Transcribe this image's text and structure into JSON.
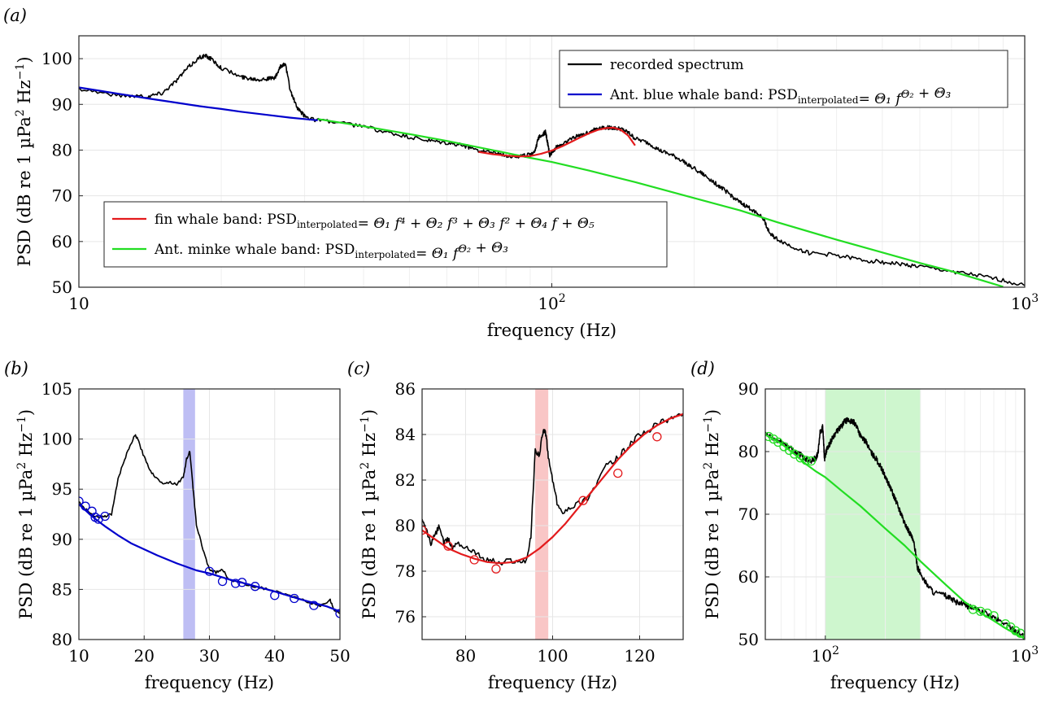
{
  "chart_data": [
    {
      "id": "a",
      "type": "line",
      "panel_label": "(a)",
      "xscale": "log",
      "xlim": [
        10,
        1000
      ],
      "ylim": [
        50,
        105
      ],
      "xticks": [
        {
          "value": 10,
          "label": "10",
          "sup": ""
        },
        {
          "value": 100,
          "label": "10",
          "sup": "2"
        },
        {
          "value": 1000,
          "label": "10",
          "sup": "3"
        }
      ],
      "yticks": [
        50,
        60,
        70,
        80,
        90,
        100
      ],
      "xlabel": "frequency (Hz)",
      "ylabel": {
        "pre": "PSD (dB re 1 µPa",
        "sup1": "2",
        "mid": " Hz",
        "sup2": "−1",
        "post": ")"
      },
      "legend_top_right": [
        {
          "name": "recorded spectrum",
          "color": "#000000"
        },
        {
          "name": "Ant. blue whale band: PSD",
          "sub": "interpolated",
          "formula": "= Θ₁ f^Θ₂ + Θ₃",
          "color": "#0000cc"
        }
      ],
      "legend_middle_left": [
        {
          "name": "fin whale band: PSD",
          "sub": "interpolated",
          "formula": "= Θ₁ f⁴ + Θ₂ f³ + Θ₃ f² + Θ₄ f + Θ₅",
          "color": "#e31a1c"
        },
        {
          "name": "Ant. minke whale band: PSD",
          "sub": "interpolated",
          "formula": "= Θ₁ f^Θ₂ + Θ₃",
          "color": "#22dd22"
        }
      ],
      "series": [
        {
          "name": "recorded spectrum",
          "color": "#000000",
          "noise": 0.45,
          "x": [
            10,
            12,
            14,
            15,
            16,
            17,
            18,
            18.5,
            19,
            20,
            22,
            23,
            24,
            25,
            26,
            26.7,
            27.3,
            28,
            29,
            30,
            31,
            35,
            40,
            45,
            50,
            55,
            60,
            65,
            70,
            75,
            80,
            85,
            90,
            92,
            94,
            96,
            97,
            98,
            99,
            100,
            102,
            105,
            110,
            115,
            120,
            125,
            130,
            135,
            140,
            145,
            150,
            160,
            170,
            180,
            190,
            200,
            210,
            220,
            230,
            240,
            250,
            260,
            270,
            280,
            290,
            300,
            320,
            350,
            400,
            450,
            500,
            550,
            600,
            700,
            800,
            900,
            1000
          ],
          "y": [
            93.5,
            92,
            91.8,
            92.5,
            95,
            98,
            100.3,
            100.6,
            100,
            98,
            96,
            95.7,
            95.5,
            95.6,
            95.8,
            98.2,
            99,
            93,
            89,
            87.5,
            86.8,
            86,
            85.2,
            83.8,
            82.8,
            82,
            81.5,
            81,
            80,
            79.5,
            78.8,
            78.6,
            79,
            79.8,
            83,
            83.5,
            84,
            81.5,
            78.8,
            79.5,
            80.5,
            81.2,
            82.5,
            83.3,
            84,
            84.8,
            85,
            84.8,
            84.6,
            83.8,
            82.5,
            81.5,
            79.8,
            78.8,
            77.5,
            76,
            74.5,
            73,
            71.5,
            70,
            68.5,
            67.5,
            66.5,
            65,
            61.5,
            60.5,
            59,
            57.5,
            57,
            56,
            55.5,
            55,
            54.5,
            53.5,
            52.5,
            51.5,
            50.4
          ]
        },
        {
          "name": "Ant. blue whale band",
          "color": "#0000cc",
          "x": [
            10,
            12,
            14,
            16,
            18,
            20,
            22,
            25,
            28,
            30,
            32
          ],
          "y": [
            93.7,
            92.4,
            91.3,
            90.4,
            89.6,
            89,
            88.4,
            87.7,
            87.1,
            86.8,
            86.5
          ]
        },
        {
          "name": "Ant. minke whale band",
          "color": "#22dd22",
          "x": [
            32,
            40,
            50,
            60,
            70,
            80,
            90,
            100,
            120,
            150,
            200,
            250,
            300,
            400,
            500,
            600,
            700,
            800,
            900
          ],
          "y": [
            86.8,
            85.2,
            83.5,
            82,
            80.6,
            79.4,
            78.3,
            77.4,
            75.5,
            73,
            69.5,
            66.8,
            64.2,
            60.4,
            57.6,
            55.3,
            53.5,
            51.7,
            50.1
          ]
        },
        {
          "name": "fin whale band",
          "color": "#e31a1c",
          "x": [
            70,
            75,
            80,
            85,
            90,
            95,
            100,
            105,
            110,
            115,
            120,
            125,
            130,
            135,
            140,
            145,
            150
          ],
          "y": [
            79.6,
            79.1,
            78.8,
            78.6,
            78.7,
            79.2,
            79.9,
            80.8,
            81.8,
            82.8,
            83.7,
            84.4,
            84.8,
            84.9,
            84.4,
            83.2,
            81
          ]
        }
      ]
    },
    {
      "id": "b",
      "type": "line",
      "panel_label": "(b)",
      "xscale": "linear",
      "xlim": [
        10,
        50
      ],
      "ylim": [
        80,
        105
      ],
      "xticks": [
        {
          "value": 10,
          "label": "10"
        },
        {
          "value": 20,
          "label": "20"
        },
        {
          "value": 30,
          "label": "30"
        },
        {
          "value": 40,
          "label": "40"
        },
        {
          "value": 50,
          "label": "50"
        }
      ],
      "yticks": [
        80,
        85,
        90,
        95,
        100,
        105
      ],
      "xlabel": "frequency (Hz)",
      "ylabel": {
        "pre": "PSD (dB re 1 µPa",
        "sup1": "2",
        "mid": " Hz",
        "sup2": "−1",
        "post": ")"
      },
      "shaded_band": {
        "x0": 26,
        "x1": 27.8,
        "color": "#b3b3f2"
      },
      "series": [
        {
          "name": "recorded spectrum",
          "color": "#000000",
          "noise": 0.12,
          "x": [
            10,
            11,
            12,
            13,
            14,
            15,
            16,
            17,
            18,
            18.6,
            19,
            20,
            21,
            22,
            23,
            24,
            25,
            26,
            26.5,
            27,
            27.5,
            28,
            29,
            30,
            31,
            32,
            33,
            35,
            37,
            39,
            41,
            43,
            45,
            47,
            48.5,
            49,
            50
          ],
          "y": [
            93.7,
            93,
            92.5,
            92.2,
            92.3,
            92.5,
            96,
            98,
            99.5,
            100.4,
            100,
            98.2,
            96.8,
            96,
            95.6,
            95.7,
            95.5,
            96.2,
            98,
            98.8,
            95,
            91.5,
            89,
            87,
            86.7,
            87,
            86,
            85.6,
            85.3,
            85,
            84.6,
            84.2,
            83.8,
            83.3,
            84,
            83,
            82.6
          ]
        },
        {
          "name": "Ant. blue whale band",
          "color": "#0000cc",
          "x": [
            10,
            12,
            14,
            16,
            18,
            20,
            22,
            25,
            28,
            30,
            33,
            36,
            40,
            44,
            48,
            50
          ],
          "y": [
            93.5,
            92.3,
            91.3,
            90.4,
            89.6,
            89,
            88.4,
            87.6,
            86.9,
            86.6,
            86,
            85.5,
            84.8,
            84,
            83.3,
            82.8
          ]
        }
      ],
      "markers": {
        "color": "#0000cc",
        "x": [
          10,
          11,
          12,
          12.5,
          13,
          14,
          30,
          32,
          34,
          35,
          37,
          40,
          43,
          46,
          50
        ],
        "y": [
          93.8,
          93.3,
          92.8,
          92.2,
          92,
          92.3,
          86.8,
          85.8,
          85.6,
          85.7,
          85.3,
          84.4,
          84.1,
          83.4,
          82.6
        ]
      }
    },
    {
      "id": "c",
      "type": "line",
      "panel_label": "(c)",
      "xscale": "linear",
      "xlim": [
        70,
        130
      ],
      "ylim": [
        75,
        86
      ],
      "xticks": [
        {
          "value": 80,
          "label": "80"
        },
        {
          "value": 100,
          "label": "100"
        },
        {
          "value": 120,
          "label": "120"
        }
      ],
      "yticks": [
        76,
        78,
        80,
        82,
        84,
        86
      ],
      "xlabel": "frequency (Hz)",
      "ylabel": {
        "pre": "PSD (dB re 1 µPa",
        "sup1": "2",
        "mid": " Hz",
        "sup2": "−1",
        "post": ")"
      },
      "shaded_band": {
        "x0": 96,
        "x1": 99,
        "color": "#f8bcbc"
      },
      "series": [
        {
          "name": "recorded spectrum",
          "color": "#000000",
          "noise": 0.12,
          "x": [
            70,
            71,
            72,
            73,
            74,
            75,
            76,
            77,
            78,
            80,
            82,
            84,
            86,
            88,
            90,
            92,
            94,
            95,
            96,
            97,
            97.5,
            98,
            98.5,
            99,
            100,
            101,
            102,
            104,
            106,
            108,
            110,
            112,
            114,
            116,
            118,
            120,
            122,
            124,
            126,
            128,
            130
          ],
          "y": [
            80.2,
            79.8,
            79.2,
            79.6,
            80,
            79.2,
            79.4,
            79,
            79.3,
            79,
            78.9,
            78.5,
            78.5,
            78.3,
            78.5,
            78.4,
            78.5,
            79.5,
            83.3,
            83.1,
            83.8,
            84.2,
            84,
            83,
            82,
            81,
            80.6,
            80.8,
            81,
            81.2,
            81.8,
            82.6,
            82.8,
            83.2,
            83.6,
            84,
            84.1,
            84.5,
            84.6,
            84.8,
            84.9
          ]
        },
        {
          "name": "fin whale band",
          "color": "#e31a1c",
          "x": [
            70,
            73,
            76,
            79,
            82,
            85,
            88,
            91,
            94,
            97,
            100,
            103,
            106,
            109,
            112,
            115,
            118,
            121,
            124,
            127,
            130
          ],
          "y": [
            79.8,
            79.4,
            79,
            78.75,
            78.55,
            78.4,
            78.35,
            78.4,
            78.6,
            79,
            79.5,
            80.1,
            80.8,
            81.5,
            82.2,
            82.9,
            83.5,
            84,
            84.4,
            84.7,
            84.9
          ]
        }
      ],
      "markers": {
        "color": "#e31a1c",
        "x": [
          70,
          76,
          82,
          87,
          107,
          115,
          124
        ],
        "y": [
          79.8,
          79.1,
          78.5,
          78.1,
          81.1,
          82.3,
          83.9
        ]
      }
    },
    {
      "id": "d",
      "type": "line",
      "panel_label": "(d)",
      "xscale": "log",
      "xlim": [
        50,
        1000
      ],
      "ylim": [
        50,
        90
      ],
      "xticks": [
        {
          "value": 100,
          "label": "10",
          "sup": "2"
        },
        {
          "value": 1000,
          "label": "10",
          "sup": "3"
        }
      ],
      "yticks": [
        50,
        60,
        70,
        80,
        90
      ],
      "xlabel": "frequency (Hz)",
      "ylabel": {
        "pre": "PSD (dB re 1 µPa",
        "sup1": "2",
        "mid": " Hz",
        "sup2": "−1",
        "post": ")"
      },
      "shaded_band": {
        "x0": 100,
        "x1": 300,
        "color": "#c6f5c6"
      },
      "series": [
        {
          "name": "recorded spectrum",
          "color": "#000000",
          "noise": 0.45,
          "x": [
            50,
            55,
            60,
            65,
            70,
            75,
            80,
            85,
            90,
            92,
            94,
            96,
            97,
            98,
            99,
            100,
            102,
            105,
            110,
            115,
            120,
            125,
            130,
            135,
            140,
            145,
            150,
            160,
            170,
            180,
            190,
            200,
            210,
            220,
            230,
            240,
            250,
            260,
            270,
            280,
            290,
            300,
            320,
            350,
            400,
            450,
            500,
            550,
            600,
            700,
            800,
            900,
            1000
          ],
          "y": [
            82.8,
            82,
            81.5,
            81,
            80,
            79.5,
            78.8,
            78.6,
            79,
            79.8,
            83,
            83.5,
            84,
            81.5,
            78.8,
            79.5,
            80.5,
            81.2,
            82.5,
            83.3,
            84,
            84.8,
            85,
            84.8,
            84.6,
            83.8,
            82.5,
            81.5,
            79.8,
            78.8,
            77.5,
            76,
            74.5,
            73,
            71.5,
            70,
            68.5,
            67.5,
            66.5,
            65,
            61.5,
            60.5,
            59,
            57.5,
            57,
            56,
            55.5,
            55,
            54.5,
            53.5,
            52.5,
            51.5,
            50.4
          ]
        },
        {
          "name": "Ant. minke whale band",
          "color": "#22dd22",
          "x": [
            50,
            60,
            70,
            80,
            90,
            100,
            120,
            150,
            200,
            250,
            300,
            400,
            500,
            600,
            700,
            800,
            900,
            1000
          ],
          "y": [
            82.7,
            81.3,
            79.6,
            78,
            76.8,
            75.9,
            73.8,
            71.3,
            67.7,
            65,
            62.5,
            58.8,
            56,
            54.3,
            53,
            51.8,
            50.9,
            50.2
          ]
        }
      ],
      "markers": {
        "color": "#22dd22",
        "x": [
          52,
          55,
          58,
          62,
          66,
          70,
          75,
          80,
          85,
          550,
          600,
          650,
          700,
          800,
          850,
          900,
          950
        ],
        "y": [
          82.4,
          82,
          81.5,
          80.8,
          80.2,
          79.6,
          79,
          78.6,
          78.5,
          54.8,
          54.5,
          54.2,
          53.8,
          52.5,
          52,
          51.4,
          51
        ]
      }
    }
  ]
}
